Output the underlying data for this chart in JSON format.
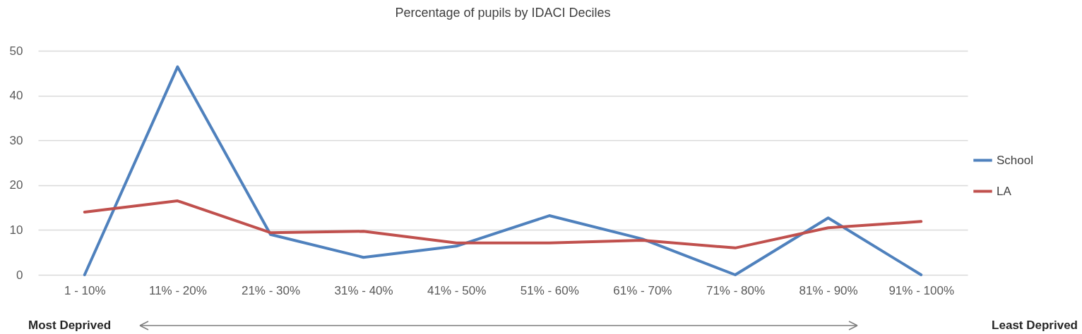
{
  "chart_data": {
    "type": "line",
    "title": "Percentage of pupils by IDACI Deciles",
    "categories": [
      "1 - 10%",
      "11% - 20%",
      "21% - 30%",
      "31% - 40%",
      "41% - 50%",
      "51% - 60%",
      "61% - 70%",
      "71% - 80%",
      "81% - 90%",
      "91% - 100%"
    ],
    "series": [
      {
        "name": "School",
        "color": "#4f81bd",
        "values": [
          0,
          46.4,
          9,
          3.9,
          6.4,
          13.2,
          8,
          0,
          12.7,
          0
        ]
      },
      {
        "name": "LA",
        "color": "#c0504d",
        "values": [
          14,
          16.5,
          9.4,
          9.7,
          7.1,
          7.1,
          7.7,
          6,
          10.5,
          11.9
        ]
      }
    ],
    "ylim": [
      0,
      50
    ],
    "yticks": [
      0,
      10,
      20,
      30,
      40,
      50
    ],
    "grid": "y",
    "legend": "right",
    "marker": "none",
    "line_style": "solid",
    "annotations": [
      "Most Deprived",
      "Least Deprived"
    ]
  }
}
